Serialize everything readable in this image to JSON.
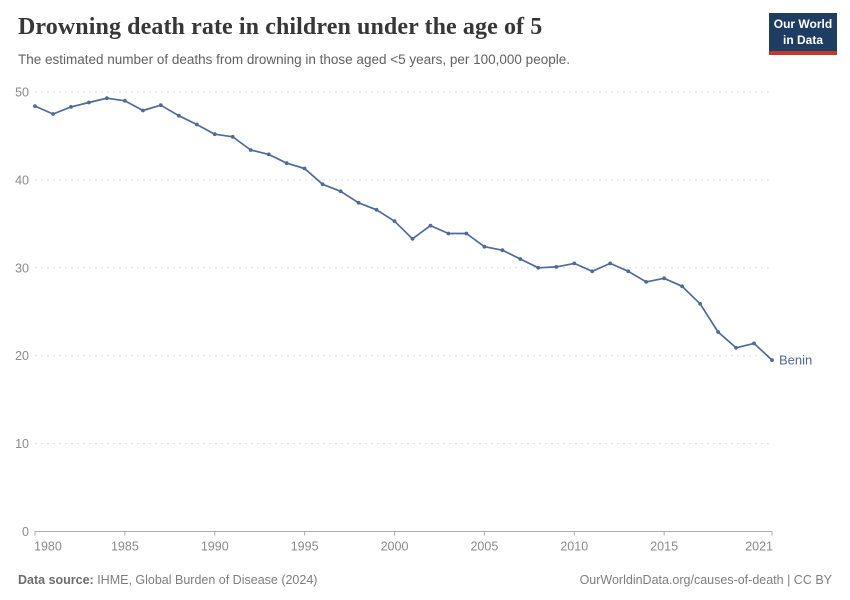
{
  "header": {
    "title": "Drowning death rate in children under the age of 5",
    "subtitle": "The estimated number of deaths from drowning in those aged <5 years, per 100,000 people.",
    "logo": {
      "line1": "Our World",
      "line2": "in Data"
    }
  },
  "chart_data": {
    "type": "line",
    "title": "Drowning death rate in children under the age of 5",
    "xlabel": "",
    "ylabel": "",
    "xlim": [
      1980,
      2021
    ],
    "ylim": [
      0,
      50
    ],
    "x_ticks": [
      1980,
      1985,
      1990,
      1995,
      2000,
      2005,
      2010,
      2015,
      2021
    ],
    "y_ticks": [
      0,
      10,
      20,
      30,
      40,
      50
    ],
    "grid": "horizontal-dashed",
    "legend_position": "end-of-line-label",
    "series": [
      {
        "name": "Benin",
        "end_label": "Benin",
        "color": "#4c6a9c",
        "x": [
          1980,
          1981,
          1982,
          1983,
          1984,
          1985,
          1986,
          1987,
          1988,
          1989,
          1990,
          1991,
          1992,
          1993,
          1994,
          1995,
          1996,
          1997,
          1998,
          1999,
          2000,
          2001,
          2002,
          2003,
          2004,
          2005,
          2006,
          2007,
          2008,
          2009,
          2010,
          2011,
          2012,
          2013,
          2014,
          2015,
          2016,
          2017,
          2018,
          2019,
          2020,
          2021
        ],
        "values": [
          48.4,
          47.5,
          48.3,
          48.8,
          49.3,
          49.0,
          47.9,
          48.5,
          47.3,
          46.3,
          45.2,
          44.9,
          43.4,
          42.9,
          41.9,
          41.3,
          39.5,
          38.7,
          37.4,
          36.6,
          35.3,
          33.3,
          34.8,
          33.9,
          33.9,
          32.4,
          32.0,
          31.0,
          30.0,
          30.1,
          30.5,
          29.6,
          30.5,
          29.6,
          28.4,
          28.8,
          27.9,
          25.9,
          22.7,
          20.9,
          21.4,
          19.5
        ]
      }
    ]
  },
  "footer": {
    "source_label": "Data source:",
    "source_text": " IHME, Global Burden of Disease (2024)",
    "credit": "OurWorldinData.org/causes-of-death | CC BY"
  },
  "colors": {
    "line": "#4c6a9c",
    "gridline": "#dedede",
    "axis": "#adadad",
    "tick_label": "#8a8a8a"
  }
}
